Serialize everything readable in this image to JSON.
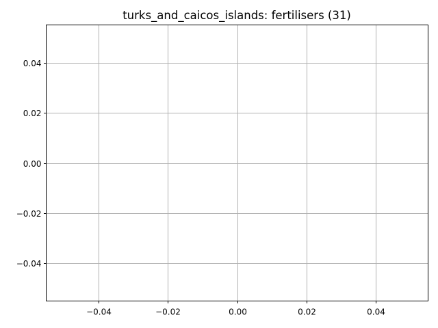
{
  "chart_data": {
    "type": "scatter",
    "title": "turks_and_caicos_islands: fertilisers (31)",
    "xlabel": "",
    "ylabel": "",
    "x": [],
    "y": [],
    "xlim": [
      -0.055,
      0.055
    ],
    "ylim": [
      -0.055,
      0.055
    ],
    "xticks": [
      -0.04,
      -0.02,
      0.0,
      0.02,
      0.04
    ],
    "xtick_labels": [
      "−0.04",
      "−0.02",
      "0.00",
      "0.02",
      "0.04"
    ],
    "yticks": [
      -0.04,
      -0.02,
      0.0,
      0.02,
      0.04
    ],
    "ytick_labels": [
      "−0.04",
      "−0.02",
      "0.00",
      "0.02",
      "0.04"
    ],
    "grid": true,
    "grid_color": "#b0b0b0"
  }
}
